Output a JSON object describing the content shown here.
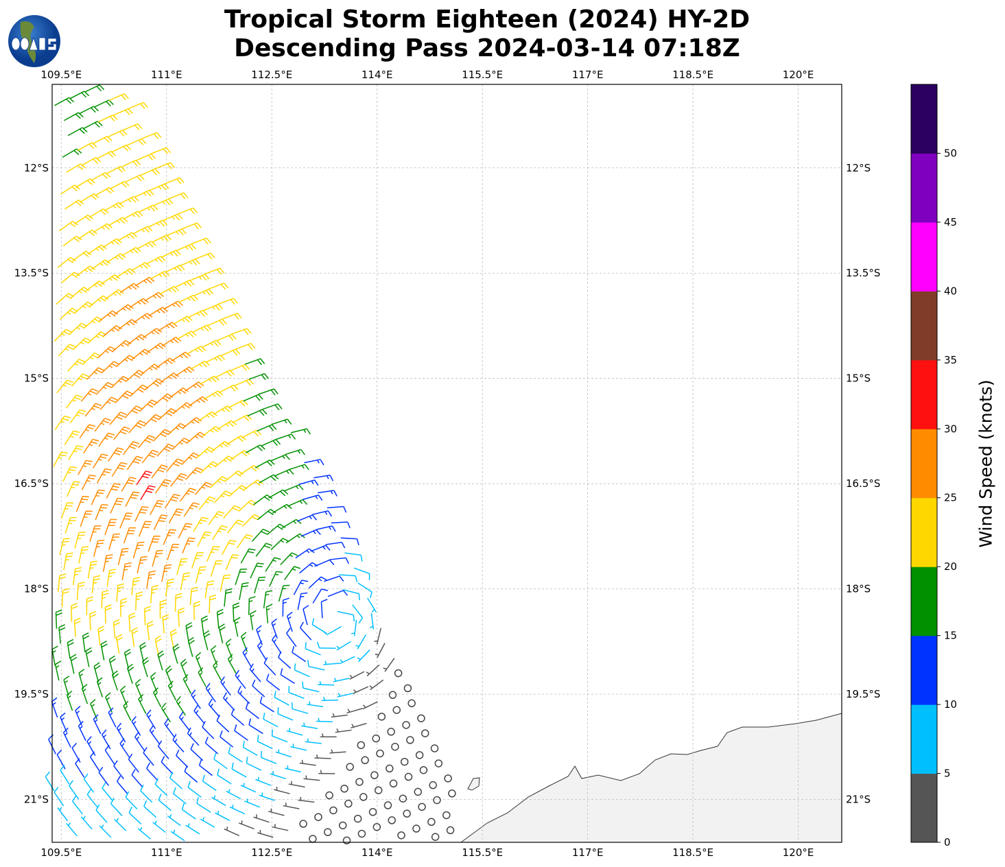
{
  "title": {
    "line1": "Tropical Storm Eighteen (2024) HY-2D",
    "line2": "Descending Pass 2024-03-14 07:18Z"
  },
  "logo": {
    "text": "COAPS"
  },
  "map": {
    "lon_ticks": [
      {
        "value": 109.5,
        "label": "109.5°E"
      },
      {
        "value": 111,
        "label": "111°E"
      },
      {
        "value": 112.5,
        "label": "112.5°E"
      },
      {
        "value": 114,
        "label": "114°E"
      },
      {
        "value": 115.5,
        "label": "115.5°E"
      },
      {
        "value": 117,
        "label": "117°E"
      },
      {
        "value": 118.5,
        "label": "118.5°E"
      },
      {
        "value": 120,
        "label": "120°E"
      }
    ],
    "lat_ticks": [
      {
        "value": -12,
        "label": "12°S"
      },
      {
        "value": -13.5,
        "label": "13.5°S"
      },
      {
        "value": -15,
        "label": "15°S"
      },
      {
        "value": -16.5,
        "label": "16.5°S"
      },
      {
        "value": -18,
        "label": "18°S"
      },
      {
        "value": -19.5,
        "label": "19.5°S"
      },
      {
        "value": -21,
        "label": "21°S"
      }
    ],
    "lon_range": [
      109.37,
      120.62
    ],
    "lat_range": [
      -21.61,
      -10.81
    ]
  },
  "colorbar": {
    "label": "Wind Speed (knots)",
    "ticks": [
      "0",
      "5",
      "10",
      "15",
      "20",
      "25",
      "30",
      "35",
      "40",
      "45",
      "50"
    ],
    "max": 55,
    "colors": [
      "#555555",
      "#00bfff",
      "#0033ff",
      "#009000",
      "#ffd700",
      "#ff8c00",
      "#ff1010",
      "#803c28",
      "#ff00ff",
      "#8000c0",
      "#2a0060"
    ]
  }
}
